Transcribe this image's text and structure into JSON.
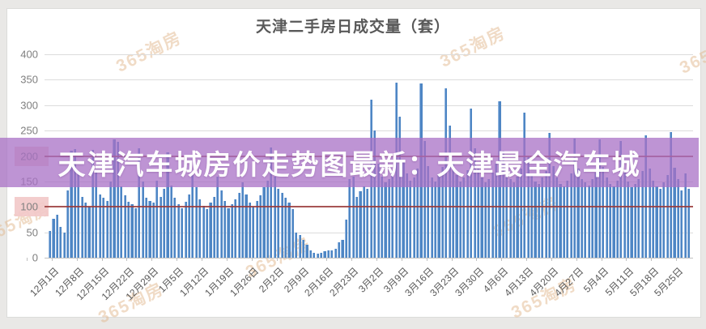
{
  "page": {
    "background": "#e9e8e6",
    "card_background": "#ffffff"
  },
  "title": "天津二手房日成交量（套）",
  "overlay_banner": {
    "text": "天津汽车城房价走势图最新：天津最全汽车城",
    "background": "#b07ccb",
    "text_color": "#ffffff"
  },
  "watermark": {
    "text": "365淘房",
    "color": "#e2b98f"
  },
  "chart_data": {
    "type": "bar",
    "title": "天津二手房日成交量（套）",
    "ylabel": "",
    "xlabel": "",
    "ylim": [
      0,
      400
    ],
    "yticks": [
      0,
      50,
      100,
      150,
      200,
      250,
      300,
      350,
      400
    ],
    "grid": true,
    "bar_color": "#4e86c4",
    "reference_lines": [
      {
        "value": 100,
        "color": "#9b3a3a"
      },
      {
        "value": 200,
        "color": "#9b3a3a"
      }
    ],
    "x_label_every_n_bars": 7,
    "x_labels": [
      "12月1日",
      "12月8日",
      "12月15日",
      "12月22日",
      "12月29日",
      "1月5日",
      "1月12日",
      "1月19日",
      "1月26日",
      "2月2日",
      "2月9日",
      "2月16日",
      "2月23日",
      "3月2日",
      "3月9日",
      "3月16日",
      "3月23日",
      "3月30日",
      "4月6日",
      "4月13日",
      "4月20日",
      "4月27日",
      "5月4日",
      "5月11日",
      "5月18日",
      "5月25日"
    ],
    "values": [
      53,
      77,
      85,
      61,
      50,
      132,
      210,
      214,
      167,
      119,
      108,
      100,
      212,
      170,
      125,
      118,
      112,
      150,
      232,
      228,
      140,
      122,
      110,
      105,
      98,
      215,
      150,
      118,
      112,
      108,
      151,
      120,
      135,
      207,
      142,
      118,
      105,
      98,
      110,
      125,
      164,
      138,
      115,
      102,
      95,
      108,
      120,
      159,
      132,
      112,
      98,
      105,
      115,
      128,
      148,
      125,
      108,
      100,
      112,
      122,
      138,
      152,
      217,
      160,
      135,
      128,
      118,
      108,
      95,
      50,
      45,
      35,
      25,
      15,
      10,
      8,
      10,
      12,
      14,
      15,
      18,
      30,
      35,
      75,
      155,
      160,
      120,
      130,
      140,
      135,
      310,
      250,
      185,
      160,
      148,
      155,
      170,
      345,
      278,
      190,
      165,
      152,
      158,
      175,
      342,
      230,
      180,
      158,
      150,
      162,
      178,
      333,
      260,
      185,
      162,
      150,
      158,
      172,
      293,
      215,
      175,
      158,
      148,
      155,
      168,
      185,
      307,
      210,
      172,
      155,
      148,
      160,
      175,
      285,
      200,
      165,
      150,
      145,
      158,
      170,
      245,
      180,
      158,
      145,
      140,
      152,
      165,
      235,
      175,
      155,
      148,
      142,
      155,
      168,
      233,
      178,
      158,
      145,
      140,
      152,
      230,
      168,
      150,
      138,
      145,
      155,
      170,
      240,
      175,
      152,
      140,
      135,
      148,
      162,
      247,
      177,
      155,
      132,
      165,
      135
    ]
  }
}
